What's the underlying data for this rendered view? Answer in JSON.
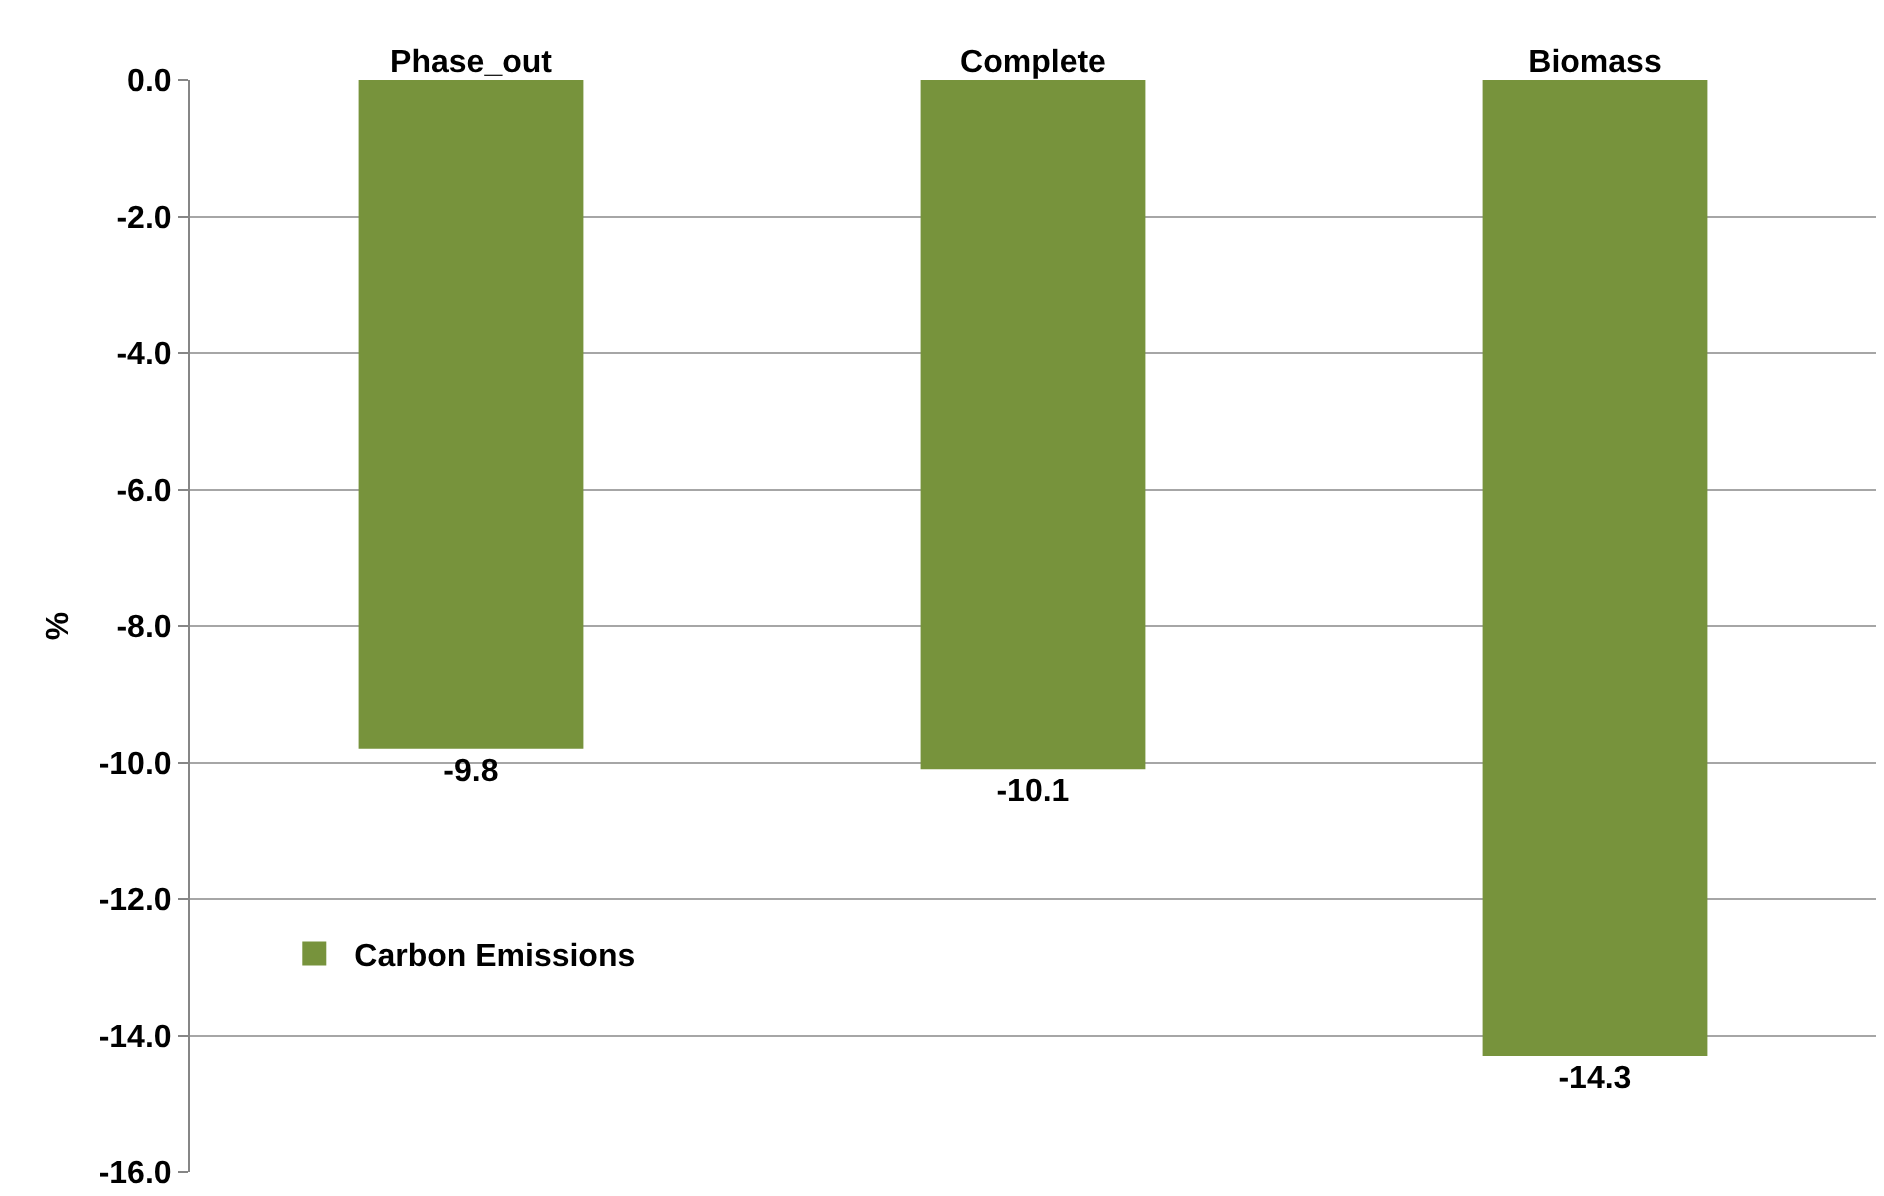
{
  "chart_data": {
    "type": "bar",
    "ylabel": "%",
    "categories": [
      "Phase_out",
      "Complete",
      "Biomass"
    ],
    "series": [
      {
        "name": "Carbon Emissions",
        "color": "#77933c",
        "values": [
          -9.8,
          -10.1,
          -14.3
        ]
      }
    ],
    "ylim": [
      -16,
      0
    ],
    "yticks": [
      {
        "value": 0,
        "label": "0.0"
      },
      {
        "value": -2,
        "label": "-2.0"
      },
      {
        "value": -4,
        "label": "-4.0"
      },
      {
        "value": -6,
        "label": "-6.0"
      },
      {
        "value": -8,
        "label": "-8.0"
      },
      {
        "value": -10,
        "label": "-10.0"
      },
      {
        "value": -12,
        "label": "-12.0"
      },
      {
        "value": -14,
        "label": "-14.0"
      },
      {
        "value": -16,
        "label": "-16.0"
      }
    ],
    "data_labels": true,
    "grid": "y",
    "legend": "bottom left"
  }
}
